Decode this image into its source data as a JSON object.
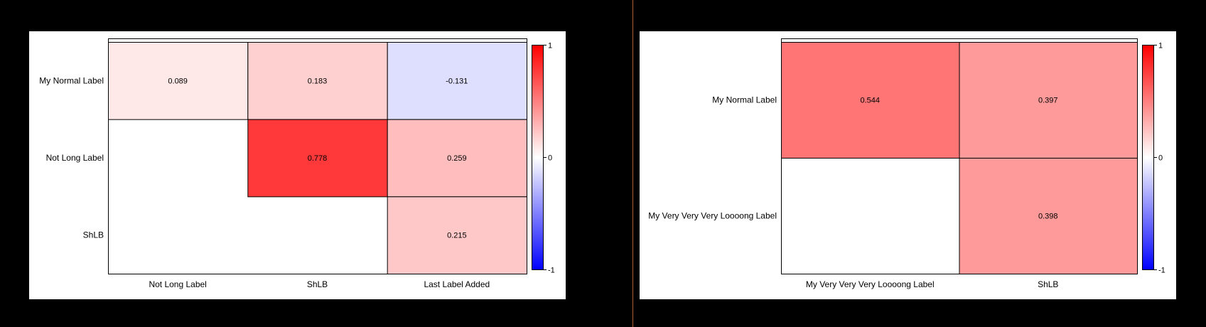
{
  "colors": {
    "background": "#000000",
    "panel": "#ffffff",
    "divider": "#b06030",
    "scale_high": "#ff0000",
    "scale_mid": "#ffffff",
    "scale_low": "#0000ff"
  },
  "chart_data": [
    {
      "type": "heatmap",
      "title": "",
      "rows": [
        "My Normal Label",
        "Not Long Label",
        "ShLB"
      ],
      "columns": [
        "Not Long Label",
        "ShLB",
        "Last Label Added"
      ],
      "cells": [
        [
          0.089,
          0.183,
          -0.131
        ],
        [
          null,
          0.778,
          0.259
        ],
        [
          null,
          null,
          0.215
        ]
      ],
      "labels": [
        [
          "0.089",
          "0.183",
          "-0.131"
        ],
        [
          "",
          "0.778",
          "0.259"
        ],
        [
          "",
          "",
          "0.215"
        ]
      ],
      "colorbar": {
        "min": -1,
        "max": 1,
        "ticks": [
          "1",
          "0",
          "-1"
        ]
      },
      "grid": false,
      "legend": "right"
    },
    {
      "type": "heatmap",
      "title": "",
      "rows": [
        "My Normal Label",
        "My Very Very Very Loooong Label"
      ],
      "columns": [
        "My Very Very Very Loooong Label",
        "ShLB"
      ],
      "cells": [
        [
          0.544,
          0.397
        ],
        [
          null,
          0.398
        ]
      ],
      "labels": [
        [
          "0.544",
          "0.397"
        ],
        [
          "",
          "0.398"
        ]
      ],
      "colorbar": {
        "min": -1,
        "max": 1,
        "ticks": [
          "1",
          "0",
          "-1"
        ]
      },
      "grid": false,
      "legend": "right"
    }
  ]
}
